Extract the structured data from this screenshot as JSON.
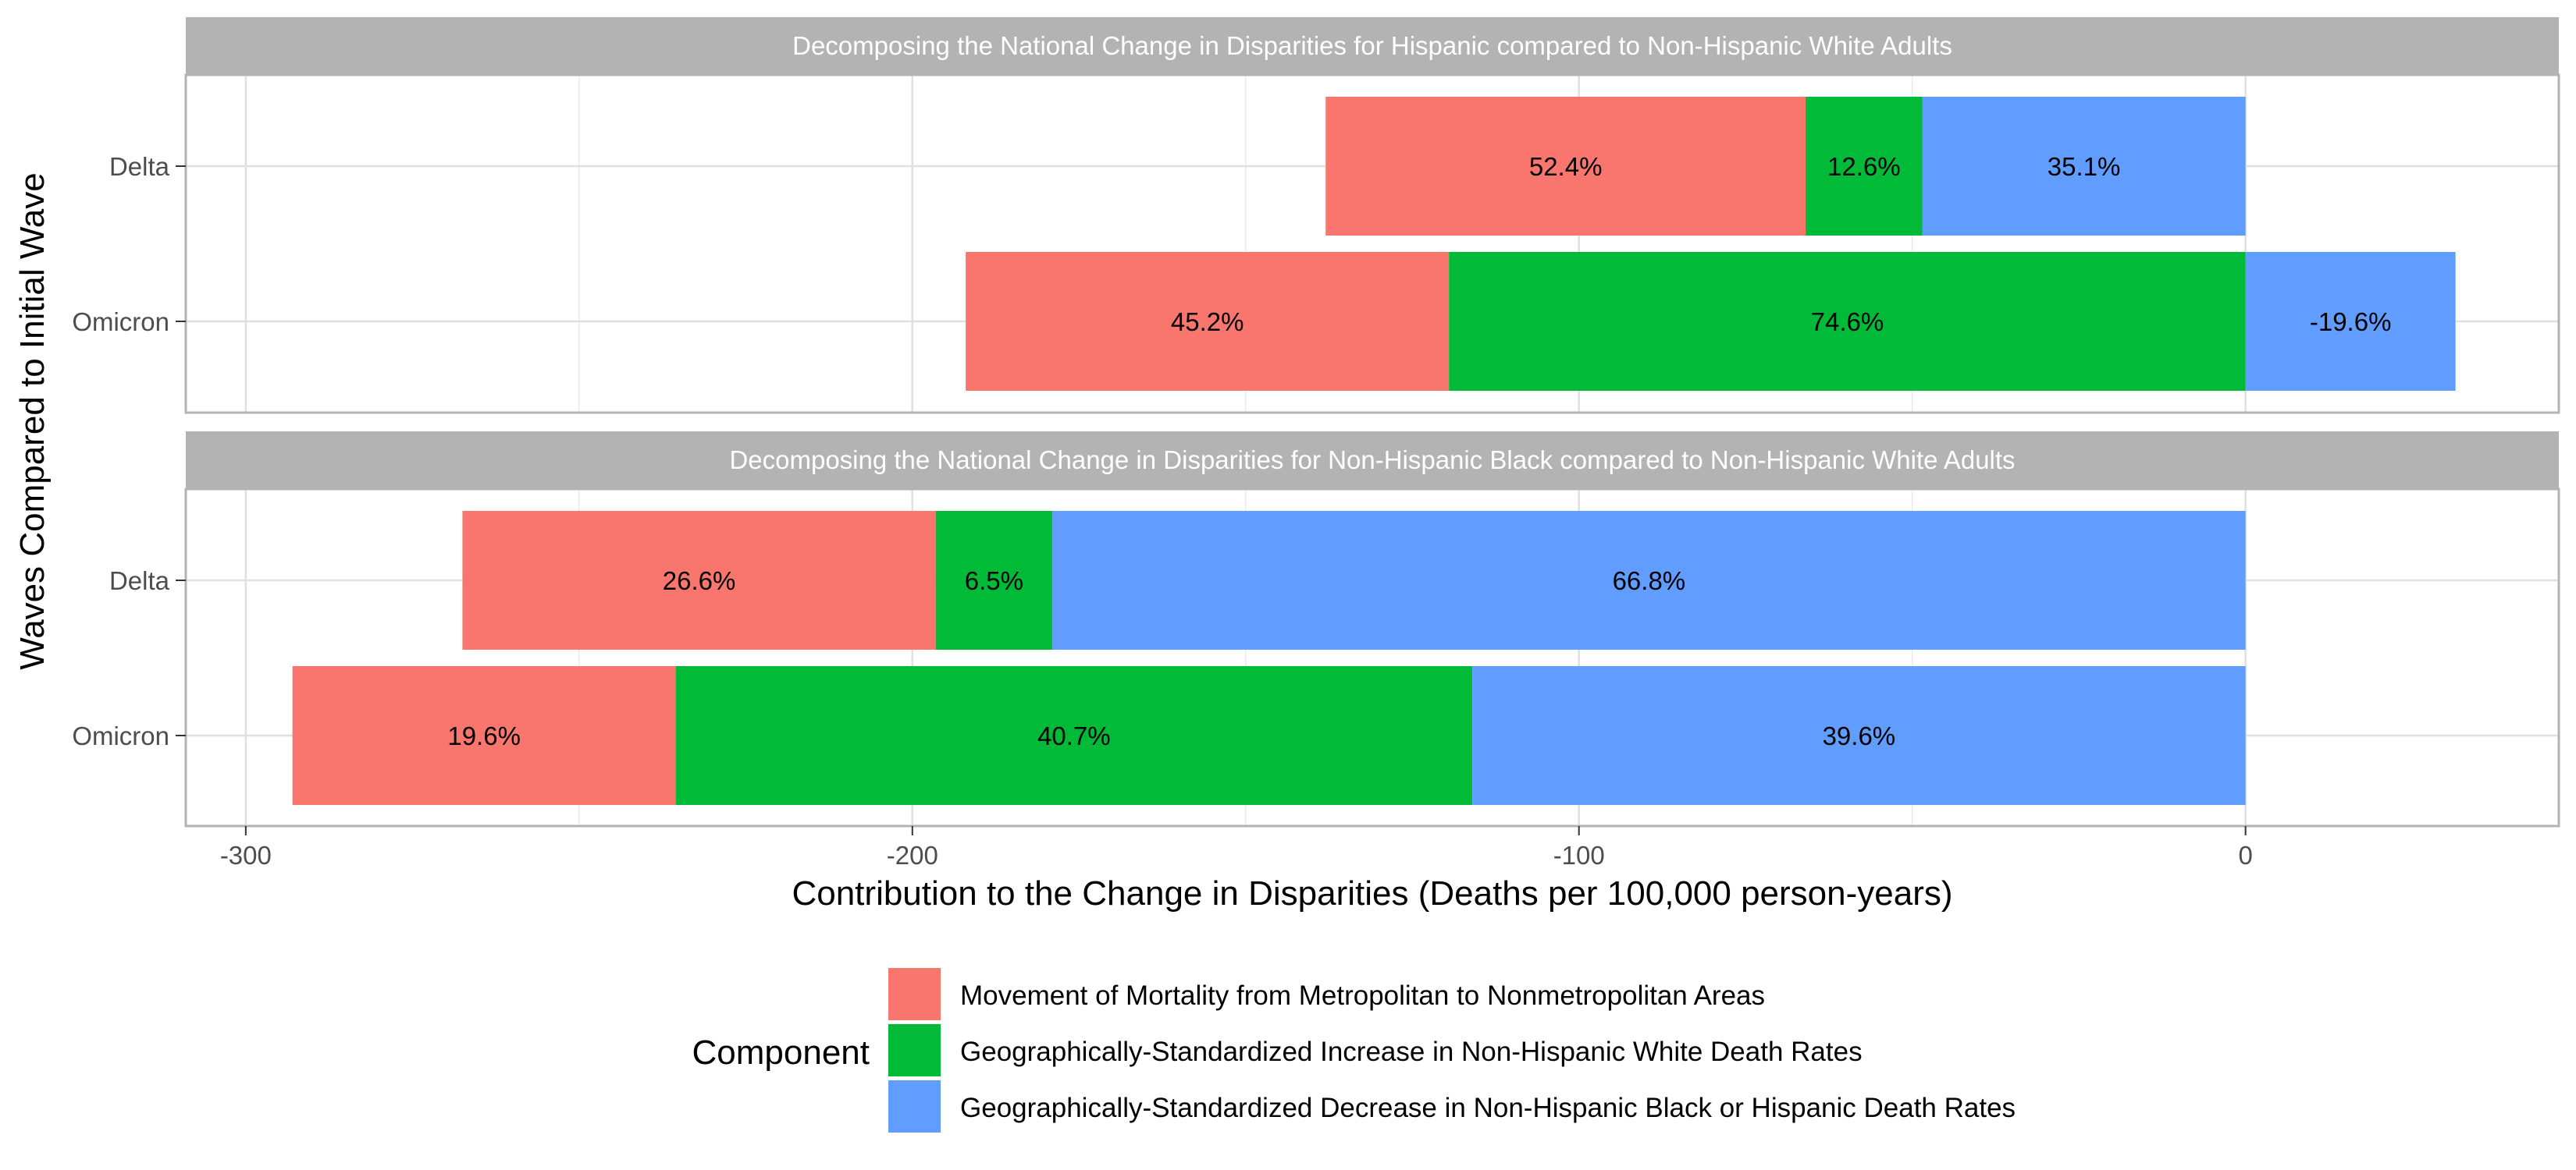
{
  "chart_data": {
    "type": "bar",
    "orientation": "horizontal",
    "stacked": true,
    "xlabel": "Contribution to the Change in Disparities (Deaths per 100,000 person-years)",
    "ylabel": "Waves Compared to Initial Wave",
    "xlim": [
      -309,
      47
    ],
    "x_ticks": [
      -300,
      -200,
      -100,
      0
    ],
    "grid": true,
    "categories": [
      "Delta",
      "Omicron"
    ],
    "legend": {
      "title": "Component",
      "position": "bottom"
    },
    "series": [
      {
        "name": "Movement of Mortality from Metropolitan to Nonmetropolitan Areas",
        "color": "#F8766D"
      },
      {
        "name": "Geographically-Standardized Increase in Non-Hispanic White Death Rates",
        "color": "#00BA38"
      },
      {
        "name": "Geographically-Standardized Decrease in Non-Hispanic Black or Hispanic Death Rates",
        "color": "#619CFF"
      }
    ],
    "panels": [
      {
        "title": "Decomposing the National Change in Disparities for Hispanic compared to Non-Hispanic White Adults",
        "rows": [
          {
            "category": "Delta",
            "segments": [
              {
                "series": 0,
                "start": -138,
                "end": -66,
                "label": "52.4%"
              },
              {
                "series": 1,
                "start": -66,
                "end": -48.5,
                "label": "12.6%"
              },
              {
                "series": 2,
                "start": -48.5,
                "end": 0,
                "label": "35.1%"
              }
            ]
          },
          {
            "category": "Omicron",
            "segments": [
              {
                "series": 0,
                "start": -192,
                "end": -119.5,
                "label": "45.2%"
              },
              {
                "series": 1,
                "start": -119.5,
                "end": 0,
                "label": "74.6%"
              },
              {
                "series": 2,
                "start": 0,
                "end": 31.5,
                "label": "-19.6%"
              }
            ]
          }
        ]
      },
      {
        "title": "Decomposing the National Change in Disparities for Non-Hispanic Black compared to Non-Hispanic White Adults",
        "rows": [
          {
            "category": "Delta",
            "segments": [
              {
                "series": 0,
                "start": -267.5,
                "end": -196.5,
                "label": "26.6%"
              },
              {
                "series": 1,
                "start": -196.5,
                "end": -179,
                "label": "6.5%"
              },
              {
                "series": 2,
                "start": -179,
                "end": 0,
                "label": "66.8%"
              }
            ]
          },
          {
            "category": "Omicron",
            "segments": [
              {
                "series": 0,
                "start": -293,
                "end": -235.5,
                "label": "19.6%"
              },
              {
                "series": 1,
                "start": -235.5,
                "end": -116,
                "label": "40.7%"
              },
              {
                "series": 2,
                "start": -116,
                "end": 0,
                "label": "39.6%"
              }
            ]
          }
        ]
      }
    ]
  }
}
